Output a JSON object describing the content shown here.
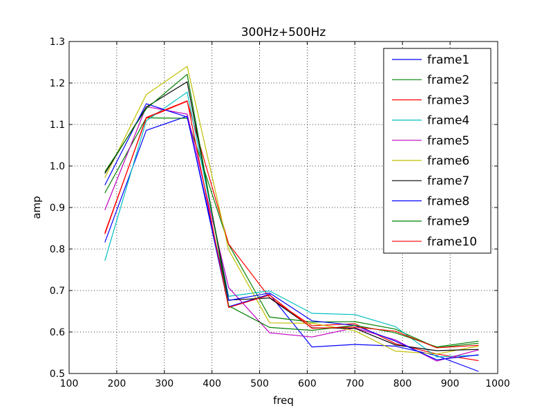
{
  "chart_data": {
    "type": "line",
    "title": "300Hz+500Hz",
    "xlabel": "freq",
    "ylabel": "amp",
    "xlim": [
      100,
      1000
    ],
    "ylim": [
      0.5,
      1.3
    ],
    "xticks": [
      100,
      200,
      300,
      400,
      500,
      600,
      700,
      800,
      900,
      1000
    ],
    "xtick_labels": [
      "100",
      "200",
      "300",
      "400",
      "500",
      "600",
      "700",
      "800",
      "900",
      "1000"
    ],
    "yticks": [
      0.5,
      0.6,
      0.7,
      0.8,
      0.9,
      1.0,
      1.1,
      1.2,
      1.3
    ],
    "ytick_labels": [
      "0.5",
      "0.6",
      "0.7",
      "0.8",
      "0.9",
      "1.0",
      "1.1",
      "1.2",
      "1.3"
    ],
    "grid": true,
    "legend_position": "top-right",
    "x": [
      175,
      262,
      348,
      435,
      521,
      610,
      700,
      785,
      872,
      960
    ],
    "series": [
      {
        "name": "frame1",
        "color": "#0000ff",
        "values": [
          0.816,
          1.086,
          1.12,
          0.661,
          0.691,
          0.564,
          0.57,
          0.566,
          0.543,
          0.505
        ]
      },
      {
        "name": "frame2",
        "color": "#008000",
        "values": [
          0.935,
          1.116,
          1.115,
          0.811,
          0.636,
          0.624,
          0.625,
          0.607,
          0.562,
          0.573
        ]
      },
      {
        "name": "frame3",
        "color": "#ff0000",
        "values": [
          0.839,
          1.115,
          1.156,
          0.812,
          0.683,
          0.615,
          0.62,
          0.572,
          0.547,
          0.531
        ]
      },
      {
        "name": "frame4",
        "color": "#00bfbf",
        "values": [
          0.772,
          1.109,
          1.178,
          0.686,
          0.699,
          0.645,
          0.642,
          0.613,
          0.54,
          0.544
        ]
      },
      {
        "name": "frame5",
        "color": "#bf00bf",
        "values": [
          0.894,
          1.143,
          1.125,
          0.707,
          0.598,
          0.588,
          0.61,
          0.581,
          0.53,
          0.557
        ]
      },
      {
        "name": "frame6",
        "color": "#bfbf00",
        "values": [
          0.972,
          1.172,
          1.24,
          0.798,
          0.622,
          0.621,
          0.603,
          0.554,
          0.547,
          0.566
        ]
      },
      {
        "name": "frame7",
        "color": "#000000",
        "values": [
          0.982,
          1.142,
          1.203,
          0.677,
          0.682,
          0.61,
          0.609,
          0.569,
          0.555,
          0.558
        ]
      },
      {
        "name": "frame8",
        "color": "#0000ff",
        "values": [
          0.954,
          1.15,
          1.118,
          0.676,
          0.694,
          0.627,
          0.616,
          0.578,
          0.533,
          0.545
        ]
      },
      {
        "name": "frame9",
        "color": "#008000",
        "values": [
          0.986,
          1.138,
          1.221,
          0.663,
          0.611,
          0.604,
          0.616,
          0.598,
          0.564,
          0.578
        ]
      },
      {
        "name": "frame10",
        "color": "#ff0000",
        "values": [
          0.836,
          1.117,
          1.157,
          0.659,
          0.689,
          0.609,
          0.612,
          0.602,
          0.562,
          0.568
        ]
      }
    ]
  }
}
